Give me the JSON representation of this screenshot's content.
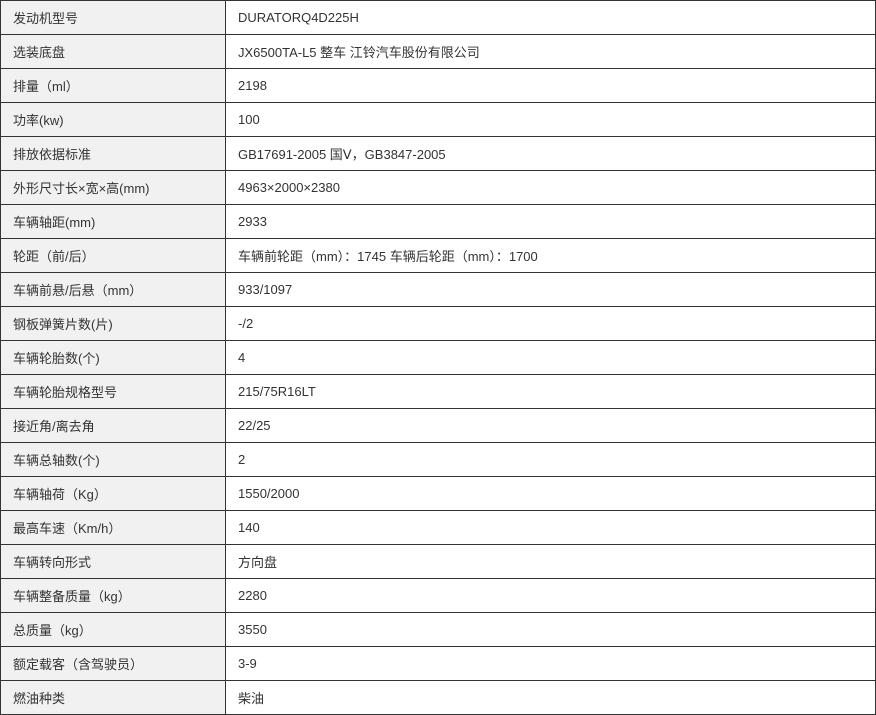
{
  "table": {
    "rows": [
      {
        "label": "发动机型号",
        "value": "DURATORQ4D225H"
      },
      {
        "label": "选装底盘",
        "value": "JX6500TA-L5  整车  江铃汽车股份有限公司"
      },
      {
        "label": "排量（ml）",
        "value": "2198"
      },
      {
        "label": "功率(kw)",
        "value": "100"
      },
      {
        "label": "排放依据标准",
        "value": "GB17691-2005 国Ⅴ，GB3847-2005"
      },
      {
        "label": "外形尺寸长×宽×高(mm)",
        "value": "4963×2000×2380"
      },
      {
        "label": "车辆轴距(mm)",
        "value": "2933"
      },
      {
        "label": "轮距（前/后）",
        "value": "车辆前轮距（mm）：1745 车辆后轮距（mm）：1700"
      },
      {
        "label": "车辆前悬/后悬（mm）",
        "value": "933/1097"
      },
      {
        "label": "钢板弹簧片数(片)",
        "value": "-/2"
      },
      {
        "label": "车辆轮胎数(个)",
        "value": "4"
      },
      {
        "label": "车辆轮胎规格型号",
        "value": "215/75R16LT"
      },
      {
        "label": "接近角/离去角",
        "value": "22/25"
      },
      {
        "label": "车辆总轴数(个)",
        "value": "2"
      },
      {
        "label": "车辆轴荷（Kg）",
        "value": "1550/2000"
      },
      {
        "label": "最高车速（Km/h）",
        "value": "140"
      },
      {
        "label": "车辆转向形式",
        "value": "方向盘"
      },
      {
        "label": "车辆整备质量（kg）",
        "value": "2280"
      },
      {
        "label": "总质量（kg）",
        "value": "3550"
      },
      {
        "label": "额定载客（含驾驶员）",
        "value": "3-9"
      },
      {
        "label": "燃油种类",
        "value": "柴油"
      }
    ]
  }
}
